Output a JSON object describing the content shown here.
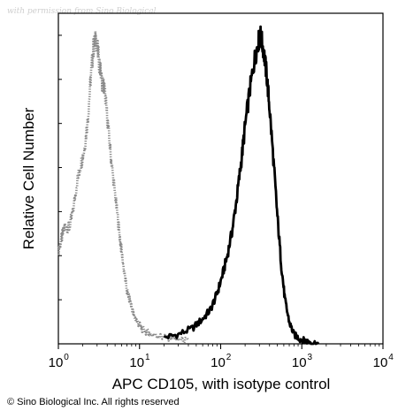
{
  "watermark": "with permission from Sino Biological",
  "copyright": "© Sino Biological Inc. All rights reserved",
  "chart_data": {
    "type": "area",
    "xlabel": "APC CD105, with isotype control",
    "ylabel": "Relative Cell Number",
    "xscale": "log",
    "xlim": [
      1,
      10000
    ],
    "ylim": [
      0,
      1
    ],
    "grid": false,
    "x_ticks": [
      {
        "base": "10",
        "exp": "0"
      },
      {
        "base": "10",
        "exp": "1"
      },
      {
        "base": "10",
        "exp": "2"
      },
      {
        "base": "10",
        "exp": "3"
      },
      {
        "base": "10",
        "exp": "4"
      }
    ],
    "series": [
      {
        "role": "isotype control",
        "style": "dotted gray",
        "color": "#8a8a8a",
        "x": [
          1,
          1.1,
          1.2,
          1.35,
          1.5,
          1.7,
          1.9,
          2.1,
          2.3,
          2.5,
          2.7,
          2.9,
          3.1,
          3.4,
          3.7,
          4.0,
          4.4,
          4.8,
          5.3,
          5.8,
          6.4,
          7.0,
          7.8,
          8.5,
          9.5,
          10.5,
          12,
          14,
          17,
          20,
          25,
          30,
          40
        ],
        "y": [
          0.3,
          0.34,
          0.38,
          0.37,
          0.42,
          0.52,
          0.58,
          0.63,
          0.72,
          0.85,
          0.95,
          0.98,
          0.93,
          0.85,
          0.82,
          0.73,
          0.61,
          0.52,
          0.42,
          0.33,
          0.24,
          0.17,
          0.13,
          0.09,
          0.07,
          0.05,
          0.04,
          0.03,
          0.025,
          0.02,
          0.02,
          0.015,
          0.01
        ]
      },
      {
        "role": "APC CD105",
        "style": "solid black",
        "color": "#000000",
        "x": [
          20,
          30,
          45,
          60,
          75,
          90,
          105,
          120,
          140,
          160,
          180,
          200,
          230,
          260,
          290,
          310,
          340,
          370,
          400,
          450,
          500,
          560,
          620,
          700,
          800,
          950,
          1100,
          1300,
          1600
        ],
        "y": [
          0.02,
          0.03,
          0.05,
          0.08,
          0.11,
          0.16,
          0.22,
          0.28,
          0.37,
          0.48,
          0.59,
          0.7,
          0.82,
          0.91,
          0.97,
          0.99,
          0.94,
          0.86,
          0.76,
          0.58,
          0.41,
          0.25,
          0.14,
          0.07,
          0.03,
          0.015,
          0.01,
          0.005,
          0.0
        ]
      }
    ]
  }
}
